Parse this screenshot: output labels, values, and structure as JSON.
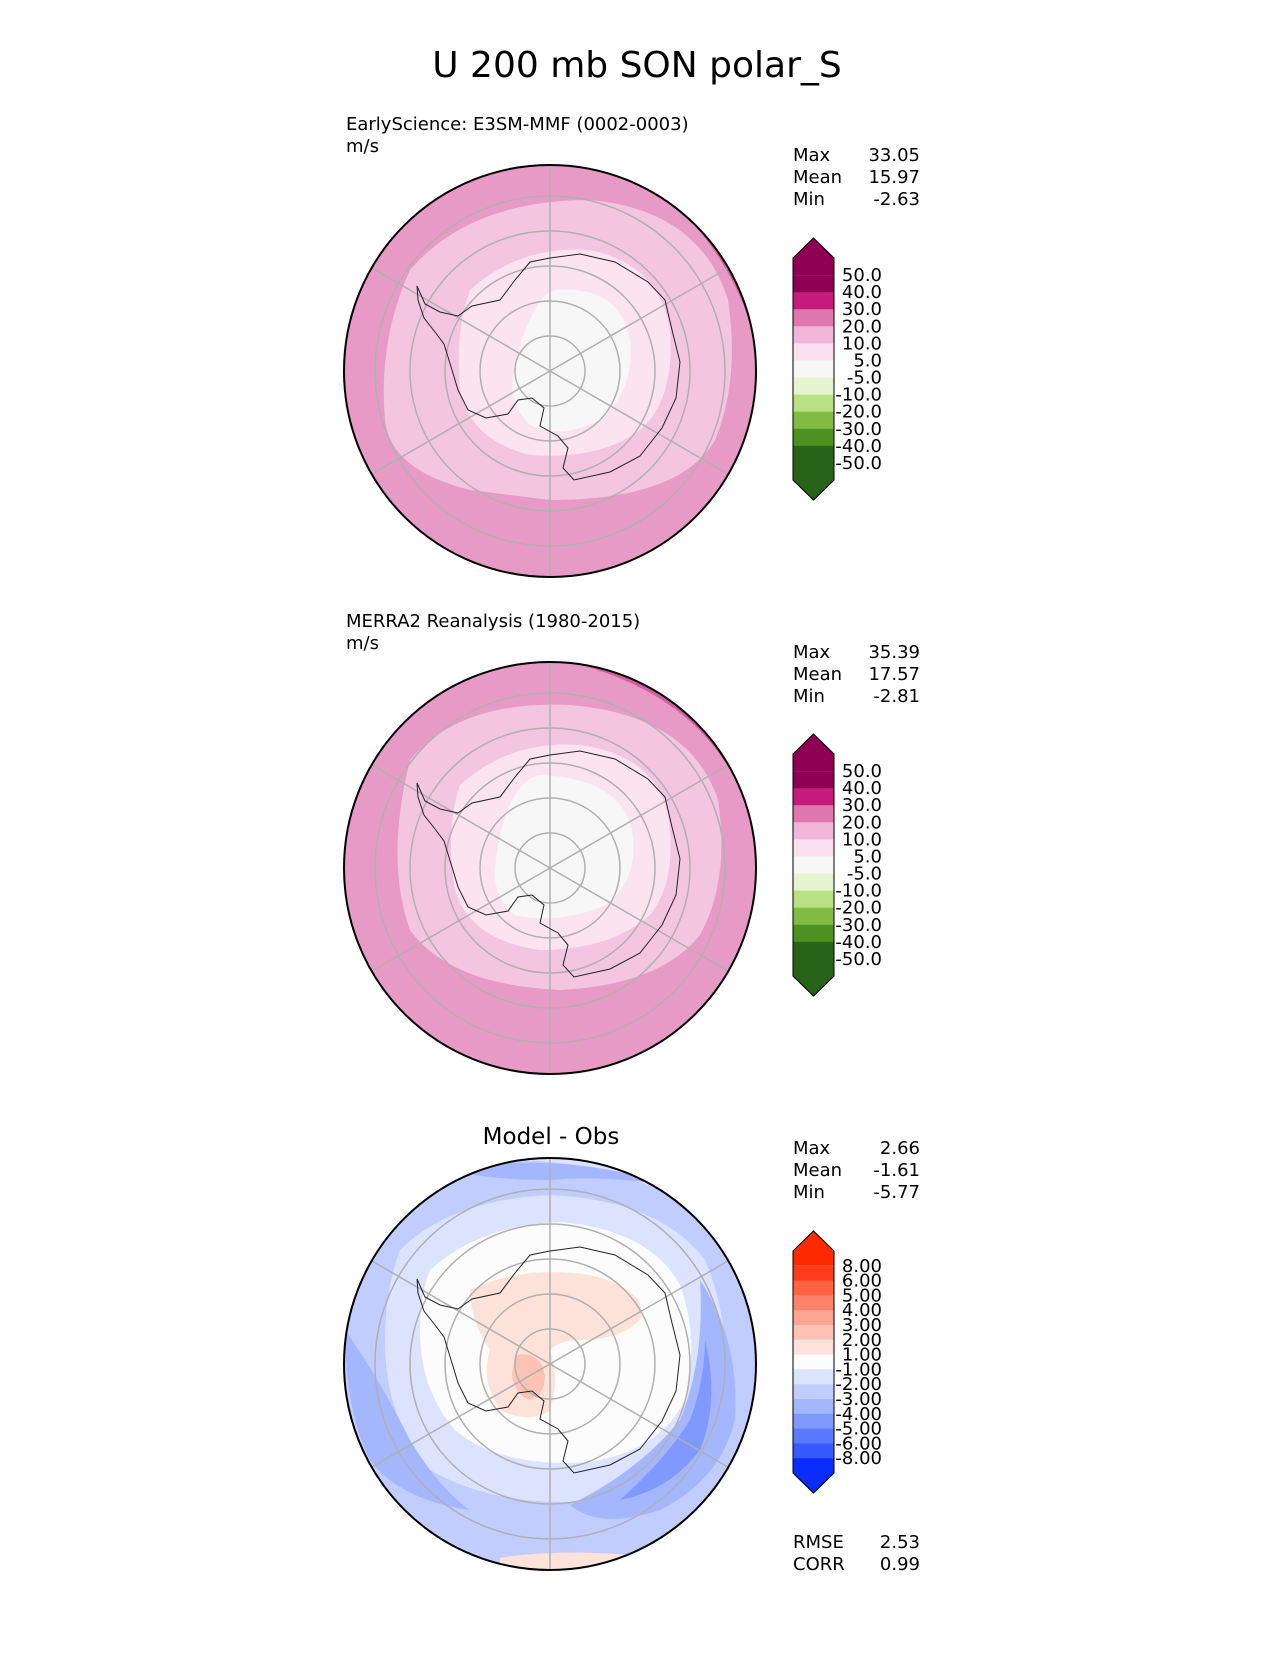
{
  "chart_data": {
    "type": "polar_contour",
    "title": "U 200 mb SON polar_S",
    "panels": [
      {
        "name": "test",
        "label": "EarlyScience: E3SM-MMF (0002-0003)",
        "units": "m/s",
        "stats": [
          {
            "name": "Max",
            "value": "33.05"
          },
          {
            "name": "Mean",
            "value": "15.97"
          },
          {
            "name": "Min",
            "value": "-2.63"
          }
        ],
        "colorbar": {
          "levels": [
            "50.0",
            "40.0",
            "30.0",
            "20.0",
            "10.0",
            "5.0",
            "-5.0",
            "-10.0",
            "-20.0",
            "-30.0",
            "-40.0",
            "-50.0"
          ],
          "colors": [
            "#8e0152",
            "#c51b7d",
            "#de77ae",
            "#f1b6da",
            "#fde0ef",
            "#f7f7f7",
            "#e6f5d0",
            "#b8e186",
            "#7fbc41",
            "#4d9221",
            "#276419"
          ],
          "extend_top": "#8e0152",
          "extend_bottom": "#276419"
        },
        "contours": [
          {
            "label": "20-30 m/s",
            "color": "#e89ac7"
          },
          {
            "label": "10-20 m/s",
            "color": "#f3c5e1"
          },
          {
            "label": "5-10 m/s",
            "color": "#fbe4f0"
          },
          {
            "label": "-5-5 m/s",
            "color": "#f7f7f7"
          },
          {
            "label": "30-40 m/s",
            "color": "#d55ea1"
          }
        ]
      },
      {
        "name": "reference",
        "label": "MERRA2 Reanalysis (1980-2015)",
        "units": "m/s",
        "stats": [
          {
            "name": "Max",
            "value": "35.39"
          },
          {
            "name": "Mean",
            "value": "17.57"
          },
          {
            "name": "Min",
            "value": "-2.81"
          }
        ],
        "colorbar": {
          "levels": [
            "50.0",
            "40.0",
            "30.0",
            "20.0",
            "10.0",
            "5.0",
            "-5.0",
            "-10.0",
            "-20.0",
            "-30.0",
            "-40.0",
            "-50.0"
          ],
          "colors": [
            "#8e0152",
            "#c51b7d",
            "#de77ae",
            "#f1b6da",
            "#fde0ef",
            "#f7f7f7",
            "#e6f5d0",
            "#b8e186",
            "#7fbc41",
            "#4d9221",
            "#276419"
          ],
          "extend_top": "#8e0152",
          "extend_bottom": "#276419"
        },
        "contours": [
          {
            "label": "20-30 m/s",
            "color": "#e89ac7"
          },
          {
            "label": "10-20 m/s",
            "color": "#f3c5e1"
          },
          {
            "label": "5-10 m/s",
            "color": "#fbe4f0"
          },
          {
            "label": "-5-5 m/s",
            "color": "#f7f7f7"
          },
          {
            "label": "30-40 m/s",
            "color": "#d55ea1"
          }
        ]
      },
      {
        "name": "difference",
        "title": "Model - Obs",
        "stats": [
          {
            "name": "Max",
            "value": "2.66"
          },
          {
            "name": "Mean",
            "value": "-1.61"
          },
          {
            "name": "Min",
            "value": "-5.77"
          }
        ],
        "colorbar": {
          "levels": [
            "8.00",
            "6.00",
            "5.00",
            "4.00",
            "3.00",
            "2.00",
            "1.00",
            "-1.00",
            "-2.00",
            "-3.00",
            "-4.00",
            "-5.00",
            "-6.00",
            "-8.00"
          ],
          "colors": [
            "#fe3b1a",
            "#fe6243",
            "#fe826a",
            "#fea592",
            "#fec3b5",
            "#fde2da",
            "#fcfcfc",
            "#dce3fe",
            "#c0cdfe",
            "#a3b6fe",
            "#8099fe",
            "#5a7afe",
            "#3658fe"
          ],
          "extend_top": "#fe2a00",
          "extend_bottom": "#0a2cff"
        },
        "contours": [
          {
            "label": "-2 to -1",
            "color": "#dce3fe"
          },
          {
            "label": "-3 to -2",
            "color": "#c0cdfe"
          },
          {
            "label": "-4 to -3",
            "color": "#a3b6fe"
          },
          {
            "label": "-5 to -4",
            "color": "#8099fe"
          },
          {
            "label": "-6 to -5",
            "color": "#5a7afe"
          },
          {
            "label": "1 to 2",
            "color": "#fde2da"
          },
          {
            "label": "2 to 3",
            "color": "#fec3b5"
          }
        ],
        "metrics": [
          {
            "name": "RMSE",
            "value": "2.53"
          },
          {
            "name": "CORR",
            "value": "0.99"
          }
        ]
      }
    ]
  }
}
